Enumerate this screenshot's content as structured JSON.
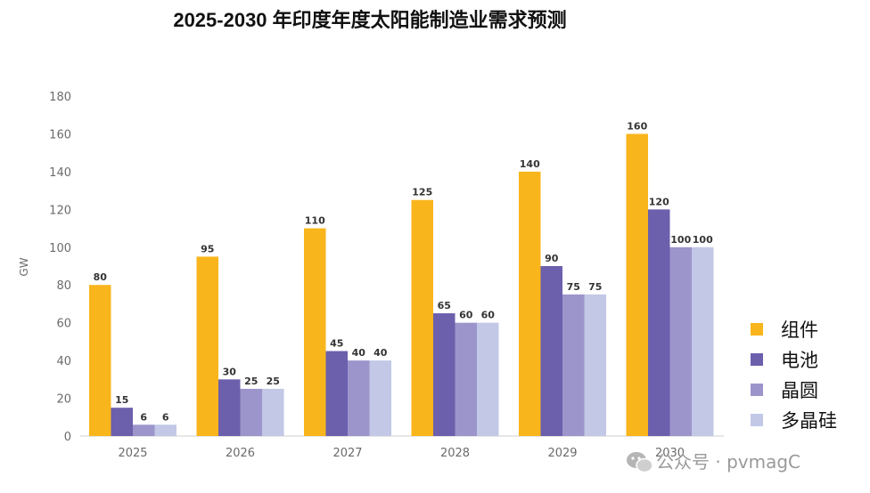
{
  "chart_data": {
    "type": "bar",
    "title": "2025-2030 年印度年度太阳能制造业需求预测",
    "ylabel": "GW",
    "xlabel": "",
    "ylim": [
      0,
      180
    ],
    "yticks": [
      0,
      20,
      40,
      60,
      80,
      100,
      120,
      140,
      160,
      180
    ],
    "categories": [
      "2025",
      "2026",
      "2027",
      "2028",
      "2029",
      "2030"
    ],
    "series": [
      {
        "name": "组件",
        "color": "#F9B51C",
        "values": [
          80,
          95,
          110,
          125,
          140,
          160
        ]
      },
      {
        "name": "电池",
        "color": "#6C5FAC",
        "values": [
          15,
          30,
          45,
          65,
          90,
          120
        ]
      },
      {
        "name": "晶圆",
        "color": "#9C95CB",
        "values": [
          6,
          25,
          40,
          60,
          75,
          100
        ]
      },
      {
        "name": "多晶硅",
        "color": "#C2C8E6",
        "values": [
          6,
          25,
          40,
          60,
          75,
          100
        ]
      }
    ],
    "legend": "right",
    "grid": false
  },
  "watermark": {
    "text": "公众号 · pvmagC",
    "icon": "wechat-icon"
  }
}
